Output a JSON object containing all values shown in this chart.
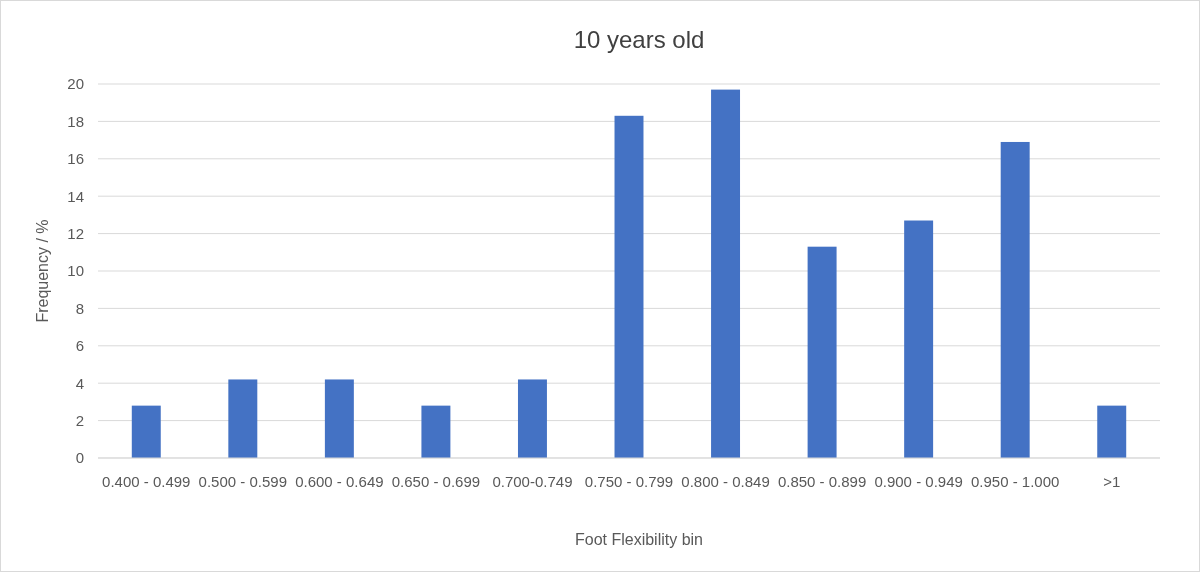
{
  "chart_data": {
    "type": "bar",
    "title": "10 years old",
    "xlabel": "Foot Flexibility bin",
    "ylabel": "Frequency / %",
    "categories": [
      "0.400 - 0.499",
      "0.500 - 0.599",
      "0.600 - 0.649",
      "0.650 - 0.699",
      "0.700-0.749",
      "0.750 - 0.799",
      "0.800 - 0.849",
      "0.850 - 0.899",
      "0.900 - 0.949",
      "0.950 - 1.000",
      ">1"
    ],
    "values": [
      2.8,
      4.2,
      4.2,
      2.8,
      4.2,
      18.3,
      19.7,
      11.3,
      12.7,
      16.9,
      2.8
    ],
    "color": "#4472c4",
    "ylim": [
      0,
      20
    ],
    "yticks": [
      0,
      2,
      4,
      6,
      8,
      10,
      12,
      14,
      16,
      18,
      20
    ],
    "grid": "y"
  }
}
